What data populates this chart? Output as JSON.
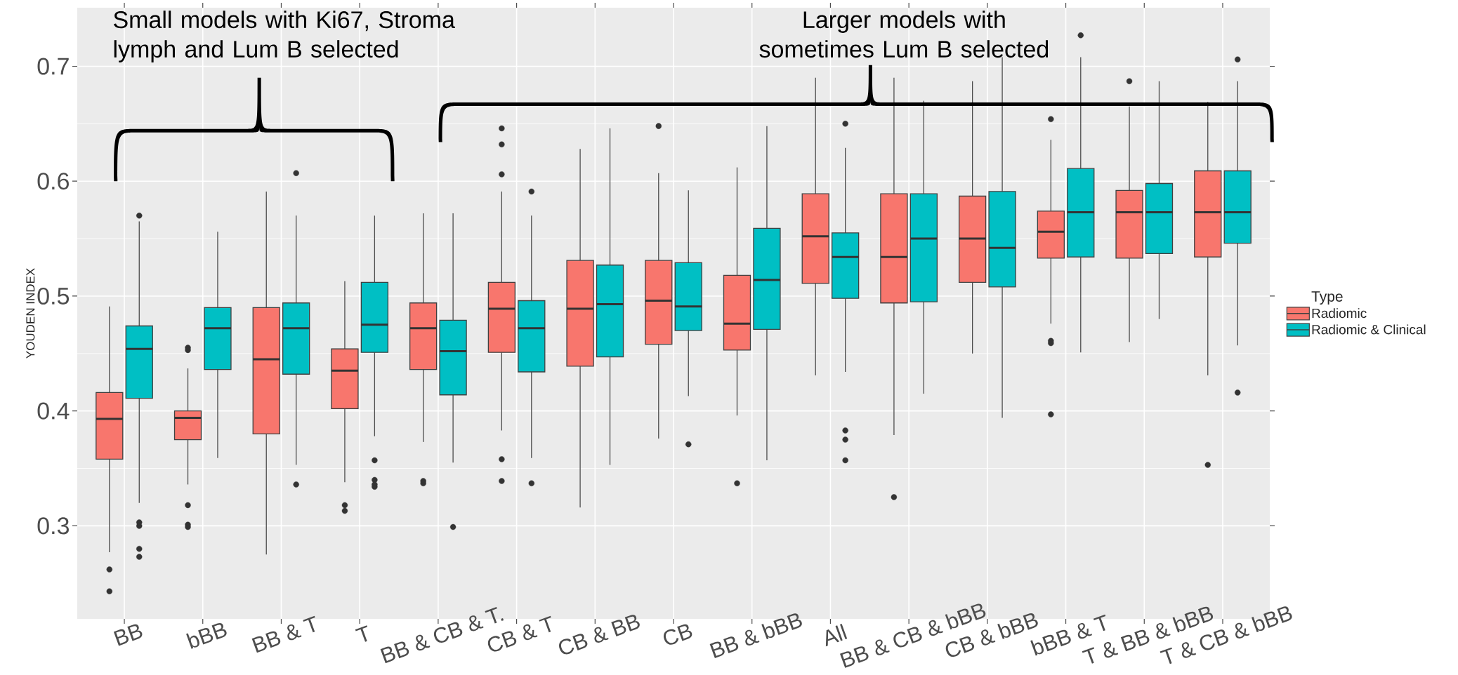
{
  "chart_data": {
    "type": "box",
    "ylabel": "YOUDEN INDEX",
    "legend_title": "Type",
    "legend": "right",
    "grid": true,
    "annotations": [
      "Small models with Ki67, Stroma lymph and Lum B selected",
      "Larger models with sometimes Lum B selected"
    ],
    "categories": [
      "BB",
      "bBB",
      "BB & T",
      "T",
      "BB & CB & T.",
      "CB & T",
      "CB & BB",
      "CB",
      "BB & bBB",
      "All",
      "BB & CB & bBB",
      "CB & bBB",
      "bBB & T",
      "T & BB & bBB",
      "T & CB & bBB"
    ],
    "ylim": [
      0.219,
      0.751
    ],
    "yticks": [
      0.3,
      0.4,
      0.5,
      0.6,
      0.7
    ],
    "series": [
      {
        "name": "Radiomic",
        "color": "#F8766D",
        "boxes": [
          {
            "low": 0.277,
            "q1": 0.358,
            "median": 0.393,
            "q3": 0.416,
            "high": 0.491,
            "outliers": [
              0.262,
              0.243
            ]
          },
          {
            "low": 0.336,
            "q1": 0.375,
            "median": 0.394,
            "q3": 0.4,
            "high": 0.437,
            "outliers": [
              0.455,
              0.453,
              0.318,
              0.301,
              0.299
            ]
          },
          {
            "low": 0.275,
            "q1": 0.38,
            "median": 0.445,
            "q3": 0.49,
            "high": 0.591
          },
          {
            "low": 0.338,
            "q1": 0.402,
            "median": 0.435,
            "q3": 0.454,
            "high": 0.513,
            "outliers": [
              0.318,
              0.313
            ]
          },
          {
            "low": 0.373,
            "q1": 0.436,
            "median": 0.472,
            "q3": 0.494,
            "high": 0.572,
            "outliers": [
              0.339,
              0.337
            ]
          },
          {
            "low": 0.383,
            "q1": 0.451,
            "median": 0.489,
            "q3": 0.512,
            "high": 0.591,
            "outliers": [
              0.646,
              0.632,
              0.606,
              0.358,
              0.339
            ]
          },
          {
            "low": 0.316,
            "q1": 0.439,
            "median": 0.489,
            "q3": 0.531,
            "high": 0.628
          },
          {
            "low": 0.376,
            "q1": 0.458,
            "median": 0.496,
            "q3": 0.531,
            "high": 0.607,
            "outliers": [
              0.648
            ]
          },
          {
            "low": 0.396,
            "q1": 0.453,
            "median": 0.476,
            "q3": 0.518,
            "high": 0.612,
            "outliers": [
              0.337
            ]
          },
          {
            "low": 0.431,
            "q1": 0.511,
            "median": 0.552,
            "q3": 0.589,
            "high": 0.69
          },
          {
            "low": 0.379,
            "q1": 0.494,
            "median": 0.534,
            "q3": 0.589,
            "high": 0.69,
            "outliers": [
              0.325
            ]
          },
          {
            "low": 0.45,
            "q1": 0.512,
            "median": 0.55,
            "q3": 0.587,
            "high": 0.687
          },
          {
            "low": 0.476,
            "q1": 0.533,
            "median": 0.556,
            "q3": 0.574,
            "high": 0.636,
            "outliers": [
              0.654,
              0.461,
              0.459,
              0.397
            ]
          },
          {
            "low": 0.46,
            "q1": 0.533,
            "median": 0.573,
            "q3": 0.592,
            "high": 0.665,
            "outliers": [
              0.687
            ]
          },
          {
            "low": 0.431,
            "q1": 0.534,
            "median": 0.573,
            "q3": 0.609,
            "high": 0.669,
            "outliers": [
              0.353
            ]
          }
        ]
      },
      {
        "name": "Radiomic & Clinical",
        "color": "#00BFC4",
        "boxes": [
          {
            "low": 0.32,
            "q1": 0.411,
            "median": 0.454,
            "q3": 0.474,
            "high": 0.565,
            "outliers": [
              0.57,
              0.303,
              0.3,
              0.28,
              0.273
            ]
          },
          {
            "low": 0.359,
            "q1": 0.436,
            "median": 0.472,
            "q3": 0.49,
            "high": 0.556
          },
          {
            "low": 0.353,
            "q1": 0.432,
            "median": 0.472,
            "q3": 0.494,
            "high": 0.57,
            "outliers": [
              0.607,
              0.336
            ]
          },
          {
            "low": 0.378,
            "q1": 0.451,
            "median": 0.475,
            "q3": 0.512,
            "high": 0.57,
            "outliers": [
              0.357,
              0.34,
              0.336,
              0.334
            ]
          },
          {
            "low": 0.355,
            "q1": 0.414,
            "median": 0.452,
            "q3": 0.479,
            "high": 0.572,
            "outliers": [
              0.299
            ]
          },
          {
            "low": 0.359,
            "q1": 0.434,
            "median": 0.472,
            "q3": 0.496,
            "high": 0.57,
            "outliers": [
              0.591,
              0.337
            ]
          },
          {
            "low": 0.353,
            "q1": 0.447,
            "median": 0.493,
            "q3": 0.527,
            "high": 0.646
          },
          {
            "low": 0.413,
            "q1": 0.47,
            "median": 0.491,
            "q3": 0.529,
            "high": 0.592,
            "outliers": [
              0.371
            ]
          },
          {
            "low": 0.357,
            "q1": 0.471,
            "median": 0.514,
            "q3": 0.559,
            "high": 0.648
          },
          {
            "low": 0.434,
            "q1": 0.498,
            "median": 0.534,
            "q3": 0.555,
            "high": 0.629,
            "outliers": [
              0.65,
              0.383,
              0.375,
              0.357
            ]
          },
          {
            "low": 0.415,
            "q1": 0.495,
            "median": 0.55,
            "q3": 0.589,
            "high": 0.67
          },
          {
            "low": 0.394,
            "q1": 0.508,
            "median": 0.542,
            "q3": 0.591,
            "high": 0.708
          },
          {
            "low": 0.451,
            "q1": 0.534,
            "median": 0.573,
            "q3": 0.611,
            "high": 0.708,
            "outliers": [
              0.727
            ]
          },
          {
            "low": 0.48,
            "q1": 0.537,
            "median": 0.573,
            "q3": 0.598,
            "high": 0.687
          },
          {
            "low": 0.457,
            "q1": 0.546,
            "median": 0.573,
            "q3": 0.609,
            "high": 0.687,
            "outliers": [
              0.706,
              0.416
            ]
          }
        ]
      }
    ]
  }
}
